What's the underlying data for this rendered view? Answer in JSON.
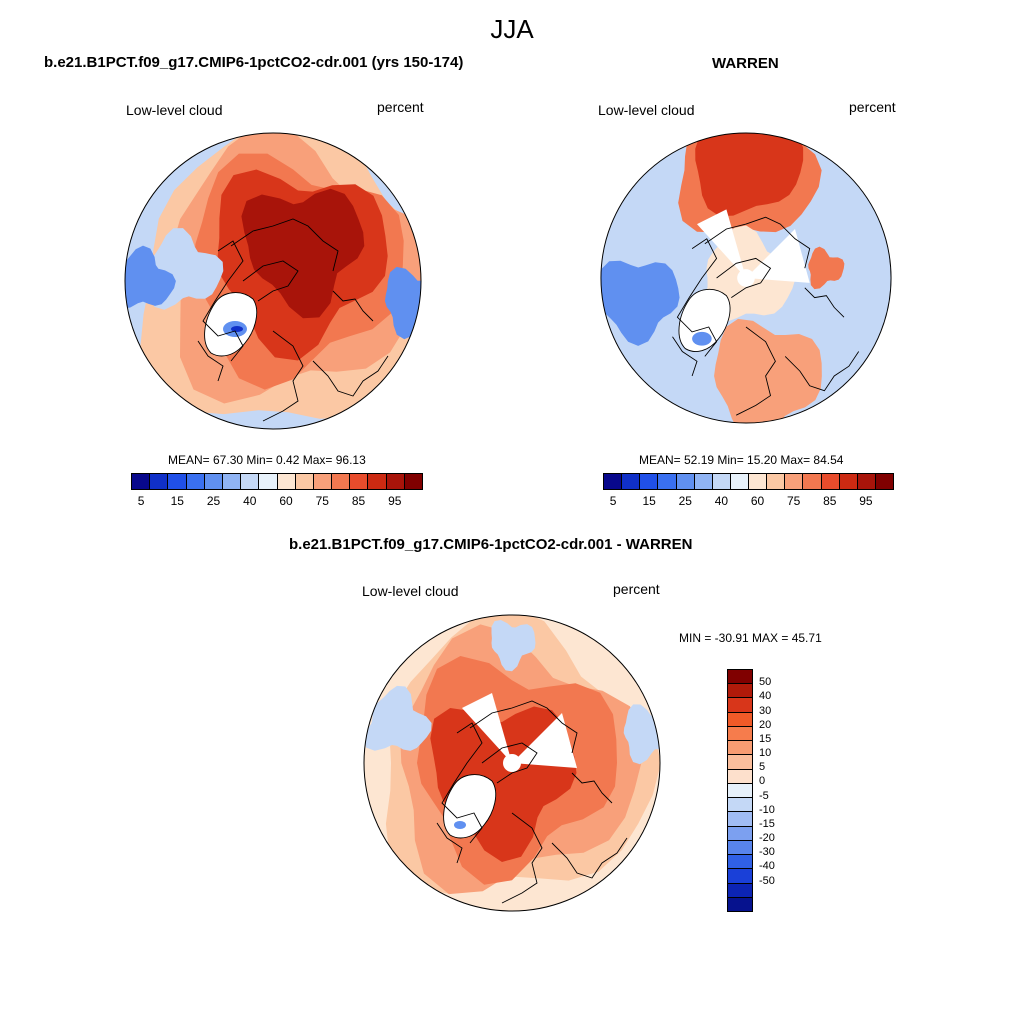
{
  "main_title": "JJA",
  "panels": [
    {
      "title": "b.e21.B1PCT.f09_g17.CMIP6-1pctCO2-cdr.001 (yrs 150-174)",
      "variable": "Low-level cloud",
      "units": "percent",
      "stats": "MEAN=  67.30  Min=   0.42  Max=  96.13"
    },
    {
      "title": "WARREN",
      "variable": "Low-level cloud",
      "units": "percent",
      "stats": "MEAN=  52.19  Min=  15.20  Max=  84.54"
    },
    {
      "title": "b.e21.B1PCT.f09_g17.CMIP6-1pctCO2-cdr.001 - WARREN",
      "variable": "Low-level cloud",
      "units": "percent",
      "stats": "MIN = -30.91 MAX =  45.71"
    }
  ],
  "colorbar_abs": {
    "colors": [
      "#08088c",
      "#1030c8",
      "#2050e8",
      "#3a70f0",
      "#6090f0",
      "#90b4f4",
      "#c4d8f6",
      "#e8f2fb",
      "#fde6d2",
      "#fbc8a4",
      "#f8a07a",
      "#f27850",
      "#e84c2c",
      "#cc2a12",
      "#a8140a",
      "#800000"
    ],
    "labels": [
      "5",
      "15",
      "25",
      "40",
      "60",
      "75",
      "85",
      "95"
    ]
  },
  "colorbar_diff": {
    "colors": [
      "#800000",
      "#b01a0a",
      "#d8361a",
      "#f05a28",
      "#f67c4c",
      "#f89c72",
      "#fbbe9c",
      "#fde0cc",
      "#e6f0fa",
      "#c4d8f6",
      "#a0bcf4",
      "#7ca0f0",
      "#5884ec",
      "#3060e6",
      "#1a40d8",
      "#0c24b4",
      "#06128e"
    ],
    "labels": [
      "50",
      "40",
      "30",
      "20",
      "15",
      "10",
      "5",
      "0",
      "-5",
      "-10",
      "-15",
      "-20",
      "-30",
      "-40",
      "-50"
    ]
  },
  "colors": {
    "deep_red": "#a8140a",
    "red": "#d8361a",
    "orange": "#f27850",
    "salmon": "#f8a07a",
    "peach": "#fbc8a4",
    "pale": "#fde6d2",
    "light_blue": "#c4d8f6",
    "blue": "#6090f0",
    "dark_blue": "#1030c8"
  }
}
